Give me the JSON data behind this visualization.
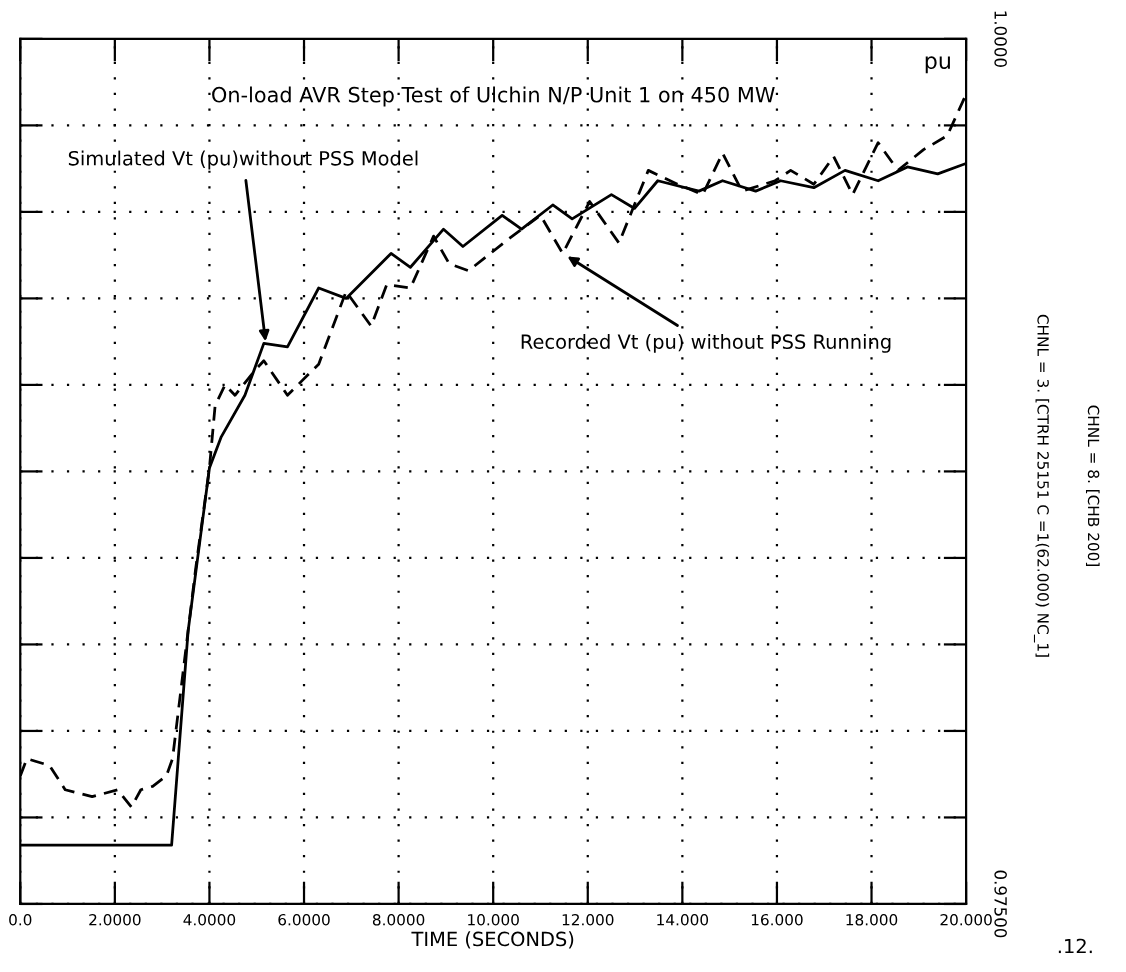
{
  "chart_data": {
    "type": "line",
    "title": "On-load AVR Step Test of Ulchin N/P Unit 1 on 450 MW",
    "xlabel": "TIME (SECONDS)",
    "ylabel": "pu",
    "xlim": [
      0,
      20
    ],
    "ylim": [
      0.975,
      1.0
    ],
    "xticks": [
      {
        "value": 0,
        "label": "0.0"
      },
      {
        "value": 2,
        "label": "2.0000"
      },
      {
        "value": 4,
        "label": "4.0000"
      },
      {
        "value": 6,
        "label": "6.0000"
      },
      {
        "value": 8,
        "label": "8.0000"
      },
      {
        "value": 10,
        "label": "10.000"
      },
      {
        "value": 12,
        "label": "12.000"
      },
      {
        "value": 14,
        "label": "14.000"
      },
      {
        "value": 16,
        "label": "16.000"
      },
      {
        "value": 18,
        "label": "18.000"
      },
      {
        "value": 20,
        "label": "20.000"
      }
    ],
    "yticks": [
      {
        "value": 0.975,
        "label": "0.97500"
      },
      {
        "value": 0.9775,
        "label": null
      },
      {
        "value": 0.98,
        "label": null
      },
      {
        "value": 0.9825,
        "label": null
      },
      {
        "value": 0.985,
        "label": null
      },
      {
        "value": 0.9875,
        "label": null
      },
      {
        "value": 0.99,
        "label": null
      },
      {
        "value": 0.9925,
        "label": null
      },
      {
        "value": 0.995,
        "label": null
      },
      {
        "value": 0.9975,
        "label": null
      },
      {
        "value": 1.0,
        "label": "1.0000"
      }
    ],
    "grid": true,
    "marker": "none",
    "series": [
      {
        "color": "#000000",
        "line_style": "solid",
        "x": [
          0,
          3.2,
          3.55,
          4.0,
          4.25,
          4.75,
          5.15,
          5.65,
          6.31,
          6.89,
          7.84,
          8.25,
          8.95,
          9.36,
          10.19,
          10.6,
          11.26,
          11.67,
          12.5,
          12.99,
          13.48,
          14.35,
          14.85,
          15.55,
          16.08,
          16.78,
          17.44,
          18.14,
          18.76,
          19.4,
          20
        ],
        "values": [
          0.9767,
          0.9767,
          0.9829,
          0.9876,
          0.9885,
          0.9897,
          0.9912,
          0.9911,
          0.9928,
          0.9925,
          0.9938,
          0.9934,
          0.9945,
          0.994,
          0.9949,
          0.9945,
          0.9952,
          0.9948,
          0.9955,
          0.9951,
          0.9959,
          0.9956,
          0.9959,
          0.9956,
          0.9959,
          0.9957,
          0.9962,
          0.9959,
          0.9963,
          0.9961,
          0.9964
        ]
      },
      {
        "color": "#000000",
        "line_style": "dashed",
        "x": [
          0,
          0.14,
          0.62,
          0.95,
          1.52,
          2.06,
          2.35,
          2.55,
          2.8,
          3.09,
          3.22,
          3.71,
          4.0,
          4.12,
          4.33,
          4.54,
          4.95,
          5.15,
          5.65,
          6.31,
          6.89,
          7.42,
          7.75,
          8.25,
          8.74,
          9.07,
          9.48,
          10.31,
          11.0,
          11.47,
          12.04,
          12.66,
          13.28,
          13.9,
          14.43,
          14.85,
          15.26,
          15.96,
          16.29,
          16.78,
          17.2,
          17.6,
          18.14,
          18.56,
          19.1,
          19.6,
          20
        ],
        "values": [
          0.9787,
          0.9792,
          0.979,
          0.9783,
          0.9781,
          0.9783,
          0.9778,
          0.9783,
          0.9784,
          0.9787,
          0.9792,
          0.9847,
          0.9876,
          0.9894,
          0.99,
          0.9897,
          0.9904,
          0.9907,
          0.9897,
          0.9906,
          0.9927,
          0.9917,
          0.9929,
          0.9928,
          0.9943,
          0.9935,
          0.9933,
          0.9942,
          0.9949,
          0.9938,
          0.9953,
          0.9941,
          0.9962,
          0.9958,
          0.9955,
          0.9967,
          0.9956,
          0.9959,
          0.9962,
          0.9958,
          0.9966,
          0.9955,
          0.997,
          0.9962,
          0.9968,
          0.9972,
          0.9984
        ]
      }
    ],
    "annotations": [
      {
        "text": "Simulated Vt (pu)without PSS Model",
        "x": 5.2,
        "y": 0.9911
      },
      {
        "text": "Recorded Vt (pu) without PSS Running",
        "x": 11.47,
        "y": 0.9938
      },
      "CHNL = 3. [CTRH 25151 C =1(62.000) NC_1]",
      "CHNL = 8. [CHB 200]",
      ".12."
    ]
  }
}
